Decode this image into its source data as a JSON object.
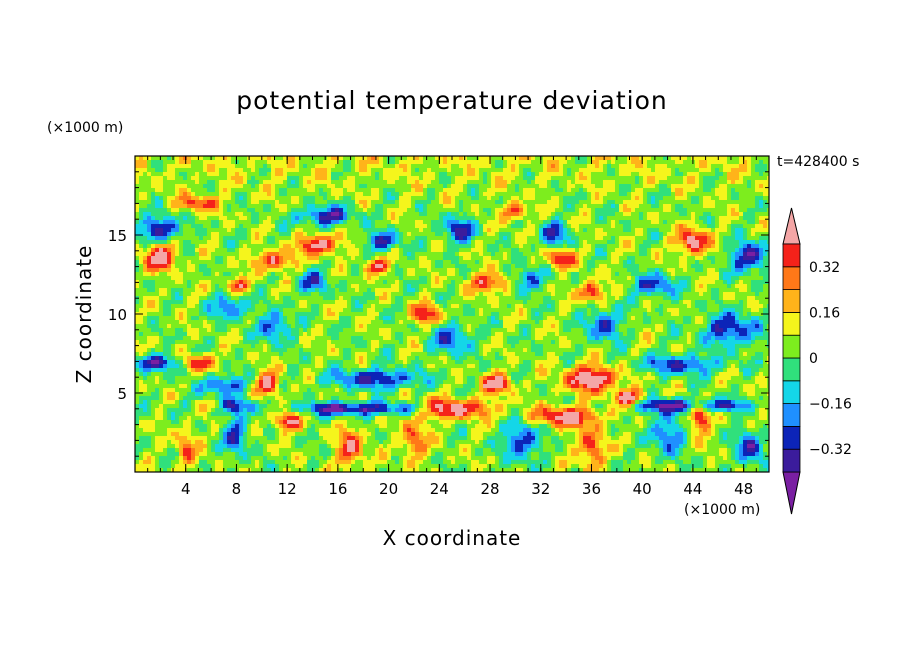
{
  "chart_data": {
    "type": "heatmap",
    "title": "potential temperature deviation",
    "xlabel": "X coordinate",
    "ylabel": "Z coordinate",
    "x_unit": "(×1000 m)",
    "y_unit": "(×1000 m)",
    "time_label": "t=428400 s",
    "xlim": [
      0,
      50
    ],
    "ylim": [
      0,
      20
    ],
    "x_ticks": [
      4,
      8,
      12,
      16,
      20,
      24,
      28,
      32,
      36,
      40,
      44,
      48
    ],
    "y_ticks": [
      5,
      10,
      15
    ],
    "colorbar": {
      "levels": [
        -0.4,
        -0.32,
        -0.24,
        -0.16,
        -0.08,
        0,
        0.08,
        0.16,
        0.24,
        0.32,
        0.4
      ],
      "tick_values": [
        -0.32,
        -0.16,
        0,
        0.16,
        0.32
      ],
      "tick_labels": [
        "−0.32",
        "−0.16",
        "0",
        "0.16",
        "0.32"
      ],
      "colors": [
        "#7a1fa2",
        "#3b1c9c",
        "#0c24b8",
        "#1f90ff",
        "#14d6e8",
        "#30e07c",
        "#7ded1e",
        "#f5f51c",
        "#ffb31a",
        "#ff7818",
        "#f5221a",
        "#f4a6a6"
      ],
      "extend": "both"
    },
    "field_features": [
      {
        "x": 7,
        "z": 4.2,
        "v": -0.44,
        "sx": 2.5,
        "sz": 0.45
      },
      {
        "x": 16,
        "z": 4.0,
        "v": -0.42,
        "sx": 3.0,
        "sz": 0.4
      },
      {
        "x": 21,
        "z": 4.0,
        "v": -0.4,
        "sx": 3.0,
        "sz": 0.45
      },
      {
        "x": 42,
        "z": 4.2,
        "v": -0.44,
        "sx": 2.5,
        "sz": 0.45
      },
      {
        "x": 46.5,
        "z": 4.2,
        "v": -0.4,
        "sx": 1.6,
        "sz": 0.4
      },
      {
        "x": 19,
        "z": 5.9,
        "v": -0.38,
        "sx": 3.5,
        "sz": 0.6
      },
      {
        "x": 7,
        "z": 5.5,
        "v": -0.36,
        "sx": 1.6,
        "sz": 0.6
      },
      {
        "x": 2,
        "z": 6.9,
        "v": -0.36,
        "sx": 2.0,
        "sz": 0.5
      },
      {
        "x": 43,
        "z": 6.8,
        "v": -0.34,
        "sx": 3.0,
        "sz": 0.6
      },
      {
        "x": 8,
        "z": 2.3,
        "v": -0.36,
        "sx": 0.9,
        "sz": 1.1
      },
      {
        "x": 30.5,
        "z": 2.0,
        "v": -0.36,
        "sx": 1.3,
        "sz": 1.2
      },
      {
        "x": 42,
        "z": 2.4,
        "v": -0.34,
        "sx": 1.2,
        "sz": 1.2
      },
      {
        "x": 48.5,
        "z": 1.5,
        "v": -0.38,
        "sx": 1.0,
        "sz": 1.1
      },
      {
        "x": 11,
        "z": 9.2,
        "v": -0.34,
        "sx": 1.1,
        "sz": 0.9
      },
      {
        "x": 25,
        "z": 8.4,
        "v": -0.34,
        "sx": 1.4,
        "sz": 0.9
      },
      {
        "x": 37,
        "z": 9.3,
        "v": -0.34,
        "sx": 1.3,
        "sz": 1.0
      },
      {
        "x": 47,
        "z": 9.0,
        "v": -0.38,
        "sx": 2.0,
        "sz": 1.0
      },
      {
        "x": 2,
        "z": 15.4,
        "v": -0.42,
        "sx": 1.5,
        "sz": 0.8
      },
      {
        "x": 15,
        "z": 16.2,
        "v": -0.4,
        "sx": 2.0,
        "sz": 0.6
      },
      {
        "x": 25.5,
        "z": 15.3,
        "v": -0.38,
        "sx": 1.2,
        "sz": 0.8
      },
      {
        "x": 33,
        "z": 15.0,
        "v": -0.36,
        "sx": 1.0,
        "sz": 0.8
      },
      {
        "x": 48.5,
        "z": 13.6,
        "v": -0.42,
        "sx": 1.5,
        "sz": 0.9
      },
      {
        "x": 19.5,
        "z": 14.6,
        "v": -0.36,
        "sx": 1.3,
        "sz": 0.6
      },
      {
        "x": 7.5,
        "z": 10.5,
        "v": -0.3,
        "sx": 1.5,
        "sz": 0.8
      },
      {
        "x": 41,
        "z": 11.8,
        "v": -0.34,
        "sx": 1.6,
        "sz": 0.7
      },
      {
        "x": 14,
        "z": 12.0,
        "v": -0.3,
        "sx": 1.2,
        "sz": 0.7
      },
      {
        "x": 31,
        "z": 12.2,
        "v": -0.32,
        "sx": 1.2,
        "sz": 0.7
      },
      {
        "x": 6,
        "z": 4.2,
        "v": 0.44,
        "sx": 1.4,
        "sz": 0.4
      },
      {
        "x": 10.5,
        "z": 5.6,
        "v": 0.44,
        "sx": 0.9,
        "sz": 0.7
      },
      {
        "x": 24.5,
        "z": 4.0,
        "v": 0.48,
        "sx": 3.5,
        "sz": 0.6
      },
      {
        "x": 34,
        "z": 3.5,
        "v": 0.44,
        "sx": 2.6,
        "sz": 0.6
      },
      {
        "x": 36,
        "z": 5.9,
        "v": 0.5,
        "sx": 2.0,
        "sz": 0.8
      },
      {
        "x": 28.5,
        "z": 5.6,
        "v": 0.44,
        "sx": 1.2,
        "sz": 0.6
      },
      {
        "x": 39,
        "z": 4.7,
        "v": 0.42,
        "sx": 1.2,
        "sz": 0.5
      },
      {
        "x": 44.5,
        "z": 3.4,
        "v": 0.42,
        "sx": 0.8,
        "sz": 0.9
      },
      {
        "x": 12,
        "z": 3.2,
        "v": 0.42,
        "sx": 1.0,
        "sz": 0.6
      },
      {
        "x": 5,
        "z": 6.9,
        "v": 0.42,
        "sx": 1.2,
        "sz": 0.5
      },
      {
        "x": 2,
        "z": 13.6,
        "v": 0.46,
        "sx": 1.3,
        "sz": 0.8
      },
      {
        "x": 14.5,
        "z": 14.4,
        "v": 0.46,
        "sx": 1.5,
        "sz": 0.6
      },
      {
        "x": 44,
        "z": 14.6,
        "v": 0.46,
        "sx": 1.2,
        "sz": 0.8
      },
      {
        "x": 33.5,
        "z": 13.5,
        "v": 0.42,
        "sx": 1.0,
        "sz": 0.6
      },
      {
        "x": 19,
        "z": 13.0,
        "v": 0.38,
        "sx": 1.0,
        "sz": 0.5
      },
      {
        "x": 8,
        "z": 11.8,
        "v": 0.42,
        "sx": 0.8,
        "sz": 0.5
      },
      {
        "x": 23,
        "z": 10.0,
        "v": 0.36,
        "sx": 1.2,
        "sz": 0.6
      },
      {
        "x": 36,
        "z": 11.4,
        "v": 0.4,
        "sx": 1.0,
        "sz": 0.6
      },
      {
        "x": 28,
        "z": 12.0,
        "v": 0.36,
        "sx": 1.5,
        "sz": 0.6
      },
      {
        "x": 11,
        "z": 13.4,
        "v": 0.36,
        "sx": 1.5,
        "sz": 0.6
      },
      {
        "x": 5,
        "z": 17.0,
        "v": 0.34,
        "sx": 1.5,
        "sz": 0.5
      },
      {
        "x": 30,
        "z": 16.5,
        "v": 0.34,
        "sx": 1.0,
        "sz": 0.5
      },
      {
        "x": 17,
        "z": 1.5,
        "v": 0.34,
        "sx": 1.0,
        "sz": 1.3
      },
      {
        "x": 36,
        "z": 1.5,
        "v": 0.34,
        "sx": 1.0,
        "sz": 1.3
      },
      {
        "x": 22,
        "z": 2.0,
        "v": 0.3,
        "sx": 1.0,
        "sz": 1.2
      },
      {
        "x": 4,
        "z": 1.5,
        "v": 0.28,
        "sx": 0.7,
        "sz": 1.2
      }
    ]
  }
}
